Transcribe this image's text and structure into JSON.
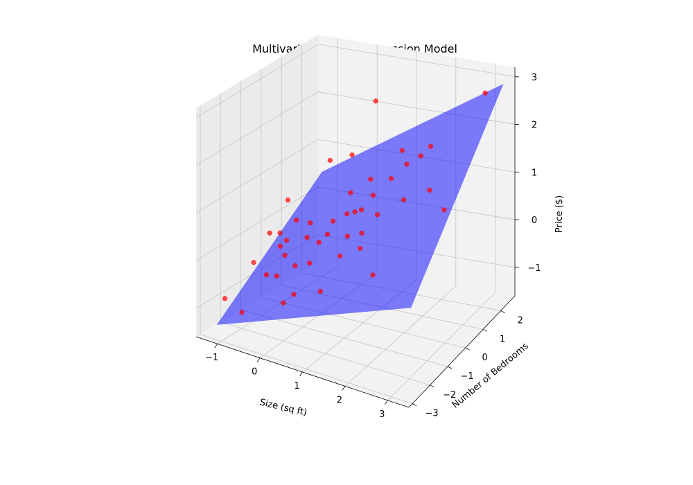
{
  "chart_data": {
    "type": "scatter",
    "projection": "3d",
    "title": "Multivariate Linear Regression Model",
    "xlabel": "Size (sq ft)",
    "ylabel": "Number of Bedrooms",
    "zlabel": "Price ($)",
    "xlim": [
      -1.5,
      3.5
    ],
    "ylim": [
      -3.2,
      2.8
    ],
    "zlim": [
      -1.6,
      3.2
    ],
    "x_ticks": [
      "−1",
      "0",
      "1",
      "2",
      "3"
    ],
    "x_tick_values": [
      -1,
      0,
      1,
      2,
      3
    ],
    "y_ticks": [
      "−3",
      "−2",
      "−1",
      "0",
      "1",
      "2"
    ],
    "y_tick_values": [
      -3,
      -2,
      -1,
      0,
      1,
      2
    ],
    "z_ticks": [
      "−1",
      "0",
      "1",
      "2",
      "3"
    ],
    "z_tick_values": [
      -1,
      0,
      1,
      2,
      3
    ],
    "grid": true,
    "marker_color": "#ff0000",
    "plane_color": "#0000ff",
    "plane": {
      "x_range": [
        -1.3,
        3.3
      ],
      "y_range": [
        -2.6,
        2.6
      ],
      "z_corners": [
        -1.45,
        0.2,
        2.9,
        0.4
      ]
    },
    "points": [
      {
        "x": -1.3,
        "y": -2.2,
        "z": -1.0
      },
      {
        "x": -0.9,
        "y": -1.6,
        "z": -0.3
      },
      {
        "x": -0.5,
        "y": -1.8,
        "z": -0.4
      },
      {
        "x": -0.3,
        "y": -1.2,
        "z": 0.2
      },
      {
        "x": -0.2,
        "y": -1.5,
        "z": 0.0
      },
      {
        "x": 0.0,
        "y": -1.4,
        "z": -0.2
      },
      {
        "x": 0.1,
        "y": -1.0,
        "z": 0.3
      },
      {
        "x": 0.3,
        "y": -1.3,
        "z": -0.1
      },
      {
        "x": 0.5,
        "y": -0.8,
        "z": 0.4
      },
      {
        "x": 0.7,
        "y": -1.6,
        "z": -0.5
      },
      {
        "x": -0.6,
        "y": -0.9,
        "z": 0.2
      },
      {
        "x": -0.4,
        "y": -0.5,
        "z": 0.4
      },
      {
        "x": 0.2,
        "y": -0.6,
        "z": 0.1
      },
      {
        "x": 0.4,
        "y": -0.3,
        "z": 0.5
      },
      {
        "x": 0.6,
        "y": 0.0,
        "z": 0.6
      },
      {
        "x": 0.8,
        "y": -0.4,
        "z": 0.3
      },
      {
        "x": 1.0,
        "y": -0.1,
        "z": 0.8
      },
      {
        "x": 1.1,
        "y": 0.3,
        "z": 1.0
      },
      {
        "x": 0.9,
        "y": 0.6,
        "z": 1.2
      },
      {
        "x": 1.2,
        "y": -0.6,
        "z": 0.2
      },
      {
        "x": 1.3,
        "y": 0.1,
        "z": 0.7
      },
      {
        "x": 1.5,
        "y": 0.4,
        "z": 1.4
      },
      {
        "x": 1.7,
        "y": 0.8,
        "z": 1.6
      },
      {
        "x": 1.6,
        "y": -0.8,
        "z": -0.2
      },
      {
        "x": 1.9,
        "y": 0.2,
        "z": 1.1
      },
      {
        "x": 2.0,
        "y": 0.9,
        "z": 1.8
      },
      {
        "x": 2.2,
        "y": 1.0,
        "z": 2.0
      },
      {
        "x": 2.4,
        "y": 0.5,
        "z": 1.3
      },
      {
        "x": 2.8,
        "y": 0.4,
        "z": 1.0
      },
      {
        "x": 3.2,
        "y": 1.8,
        "z": 3.0
      },
      {
        "x": -0.1,
        "y": 0.6,
        "z": 1.4
      },
      {
        "x": 0.3,
        "y": 0.9,
        "z": 1.5
      },
      {
        "x": -0.7,
        "y": -0.3,
        "z": 0.7
      },
      {
        "x": -0.9,
        "y": -0.8,
        "z": 0.1
      },
      {
        "x": 0.0,
        "y": -2.0,
        "z": -0.8
      },
      {
        "x": -0.8,
        "y": -2.4,
        "z": -1.1
      },
      {
        "x": 0.6,
        "y": 1.5,
        "z": 2.5
      },
      {
        "x": -0.2,
        "y": -0.2,
        "z": 0.3
      },
      {
        "x": 0.5,
        "y": 0.4,
        "z": 0.9
      },
      {
        "x": 1.4,
        "y": 1.2,
        "z": 1.7
      },
      {
        "x": 0.2,
        "y": -1.9,
        "z": -0.6
      },
      {
        "x": -0.5,
        "y": -1.1,
        "z": 0.0
      },
      {
        "x": 0.9,
        "y": -1.0,
        "z": 0.1
      },
      {
        "x": 1.1,
        "y": -0.3,
        "z": 0.4
      },
      {
        "x": 0.7,
        "y": 0.2,
        "z": 0.6
      },
      {
        "x": -0.3,
        "y": -1.7,
        "z": -0.4
      }
    ]
  }
}
